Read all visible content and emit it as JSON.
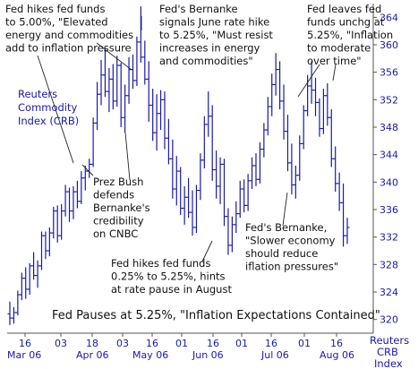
{
  "chart_data": {
    "type": "ohlc",
    "title": "",
    "xlabel": "",
    "ylabel": "",
    "series_label": "Reuters Commodity Index (CRB)",
    "corner_label": [
      "Reuters",
      "CRB",
      "Index"
    ],
    "footer": "Fed Pauses at 5.25%, \"Inflation Expectations Contained\"",
    "ylim": [
      318,
      366
    ],
    "yticks": [
      320,
      324,
      328,
      332,
      336,
      340,
      344,
      348,
      352,
      356,
      360,
      364
    ],
    "x_day_ticks": [
      "16",
      "03",
      "18",
      "03",
      "16",
      "01",
      "16",
      "01",
      "16",
      "01",
      "16"
    ],
    "x_month_labels": [
      "Mar 06",
      "Apr 06",
      "May 06",
      "Jun 06",
      "Jul 06",
      "Aug 06"
    ],
    "grid": false,
    "annotations": [
      {
        "id": "fed-500",
        "lines": [
          "Fed hikes fed funds",
          "to 5.00%, \"Elevated",
          "energy and commodities",
          "add to inflation pressure"
        ]
      },
      {
        "id": "bernanke-june",
        "lines": [
          "Fed's Bernanke",
          "signals June rate hike",
          "to 5.25%, \"Must resist",
          "increases in energy",
          "and commodities\""
        ]
      },
      {
        "id": "fed-unchg",
        "lines": [
          "Fed leaves fed",
          "funds unchg at",
          "5.25%, \"Inflation",
          "to moderate",
          "over time\""
        ]
      },
      {
        "id": "bush",
        "lines": [
          "Prez Bush",
          "defends",
          "Bernanke's",
          "credibility",
          "on CNBC"
        ]
      },
      {
        "id": "bernanke-slower",
        "lines": [
          "Fed's Bernanke,",
          "\"Slower economy",
          "should reduce",
          "iflation pressures\""
        ]
      },
      {
        "id": "fed-525",
        "lines": [
          "Fed hikes fed funds",
          "0.25% to 5.25%, hints",
          "at rate pause in August"
        ]
      }
    ],
    "bar_color": "#1a1aa6",
    "ohlc": [
      [
        320.8,
        322.6,
        319.2,
        320.2
      ],
      [
        320.2,
        321.8,
        319.4,
        321.0
      ],
      [
        321.0,
        324.2,
        320.6,
        323.6
      ],
      [
        323.6,
        326.8,
        322.8,
        326.0
      ],
      [
        326.0,
        327.6,
        323.0,
        324.4
      ],
      [
        324.4,
        328.2,
        323.6,
        327.8
      ],
      [
        327.8,
        329.8,
        325.8,
        326.4
      ],
      [
        326.4,
        328.6,
        324.6,
        327.8
      ],
      [
        327.8,
        332.8,
        327.2,
        332.2
      ],
      [
        332.2,
        332.8,
        328.8,
        330.0
      ],
      [
        330.0,
        333.4,
        329.2,
        332.6
      ],
      [
        332.6,
        336.4,
        331.8,
        335.8
      ],
      [
        335.8,
        336.6,
        331.2,
        332.2
      ],
      [
        332.2,
        336.8,
        331.6,
        335.8
      ],
      [
        335.8,
        339.6,
        335.0,
        338.6
      ],
      [
        338.6,
        339.2,
        334.2,
        335.8
      ],
      [
        335.8,
        339.4,
        334.6,
        338.6
      ],
      [
        338.6,
        340.2,
        336.2,
        337.2
      ],
      [
        337.2,
        341.6,
        336.8,
        340.6
      ],
      [
        340.6,
        342.4,
        338.8,
        341.6
      ],
      [
        341.6,
        343.4,
        340.6,
        342.6
      ],
      [
        342.6,
        349.4,
        342.2,
        348.6
      ],
      [
        348.6,
        354.6,
        347.6,
        352.8
      ],
      [
        352.8,
        357.8,
        351.2,
        355.6
      ],
      [
        355.6,
        359.4,
        352.4,
        353.2
      ],
      [
        353.2,
        356.6,
        350.2,
        355.0
      ],
      [
        355.0,
        357.2,
        350.6,
        351.8
      ],
      [
        351.8,
        358.4,
        351.0,
        357.0
      ],
      [
        357.0,
        357.4,
        348.0,
        349.4
      ],
      [
        349.4,
        354.2,
        347.2,
        352.6
      ],
      [
        352.6,
        358.2,
        351.4,
        356.4
      ],
      [
        356.4,
        358.6,
        353.6,
        354.8
      ],
      [
        354.8,
        361.2,
        354.0,
        360.4
      ],
      [
        360.4,
        365.6,
        357.4,
        358.2
      ],
      [
        358.2,
        360.6,
        354.2,
        355.0
      ],
      [
        355.0,
        357.6,
        348.8,
        351.2
      ],
      [
        351.2,
        353.6,
        346.0,
        347.2
      ],
      [
        347.2,
        352.8,
        344.6,
        350.0
      ],
      [
        350.0,
        353.4,
        347.6,
        352.0
      ],
      [
        352.0,
        353.2,
        344.8,
        346.4
      ],
      [
        346.4,
        349.2,
        342.6,
        343.4
      ],
      [
        343.4,
        346.2,
        337.6,
        339.0
      ],
      [
        339.0,
        343.8,
        336.6,
        341.6
      ],
      [
        341.6,
        342.2,
        335.2,
        336.2
      ],
      [
        336.2,
        339.4,
        333.8,
        337.8
      ],
      [
        337.8,
        340.6,
        334.8,
        335.6
      ],
      [
        335.6,
        338.8,
        332.2,
        333.4
      ],
      [
        333.4,
        339.6,
        332.6,
        338.8
      ],
      [
        338.8,
        344.2,
        337.4,
        343.2
      ],
      [
        343.2,
        349.6,
        342.0,
        348.4
      ],
      [
        348.4,
        353.2,
        346.6,
        349.6
      ],
      [
        349.6,
        351.2,
        340.2,
        341.8
      ],
      [
        341.8,
        344.6,
        337.6,
        339.4
      ],
      [
        339.4,
        343.6,
        336.8,
        342.6
      ],
      [
        342.6,
        343.4,
        333.6,
        335.0
      ],
      [
        335.0,
        336.2,
        329.4,
        330.8
      ],
      [
        330.8,
        335.0,
        329.8,
        333.8
      ],
      [
        333.8,
        337.2,
        332.6,
        335.4
      ],
      [
        335.4,
        340.2,
        334.8,
        339.0
      ],
      [
        339.0,
        340.4,
        335.6,
        336.6
      ],
      [
        336.6,
        341.2,
        335.8,
        340.2
      ],
      [
        340.2,
        343.6,
        339.0,
        342.4
      ],
      [
        342.4,
        344.2,
        339.4,
        340.4
      ],
      [
        340.4,
        345.8,
        339.8,
        344.8
      ],
      [
        344.8,
        348.6,
        343.6,
        347.6
      ],
      [
        347.6,
        352.4,
        346.8,
        351.0
      ],
      [
        351.0,
        355.8,
        349.6,
        354.2
      ],
      [
        354.2,
        358.8,
        352.6,
        356.4
      ],
      [
        356.4,
        357.6,
        350.6,
        351.8
      ],
      [
        351.8,
        354.2,
        346.2,
        347.4
      ],
      [
        347.4,
        349.8,
        341.6,
        342.8
      ],
      [
        342.8,
        345.6,
        338.2,
        339.6
      ],
      [
        339.6,
        342.4,
        337.6,
        341.0
      ],
      [
        341.0,
        346.8,
        340.2,
        345.6
      ],
      [
        345.6,
        351.2,
        344.8,
        350.4
      ],
      [
        350.4,
        355.6,
        349.6,
        354.0
      ],
      [
        354.0,
        357.6,
        351.4,
        353.4
      ],
      [
        353.4,
        355.2,
        349.6,
        351.6
      ],
      [
        351.6,
        352.2,
        346.6,
        347.8
      ],
      [
        347.8,
        353.6,
        347.0,
        352.6
      ],
      [
        352.6,
        354.4,
        348.2,
        349.4
      ],
      [
        349.4,
        350.6,
        342.2,
        343.4
      ],
      [
        343.4,
        345.2,
        338.6,
        339.8
      ],
      [
        339.8,
        341.4,
        335.8,
        337.0
      ],
      [
        337.0,
        339.8,
        330.6,
        332.2
      ],
      [
        332.2,
        334.8,
        331.0,
        333.4
      ]
    ]
  }
}
